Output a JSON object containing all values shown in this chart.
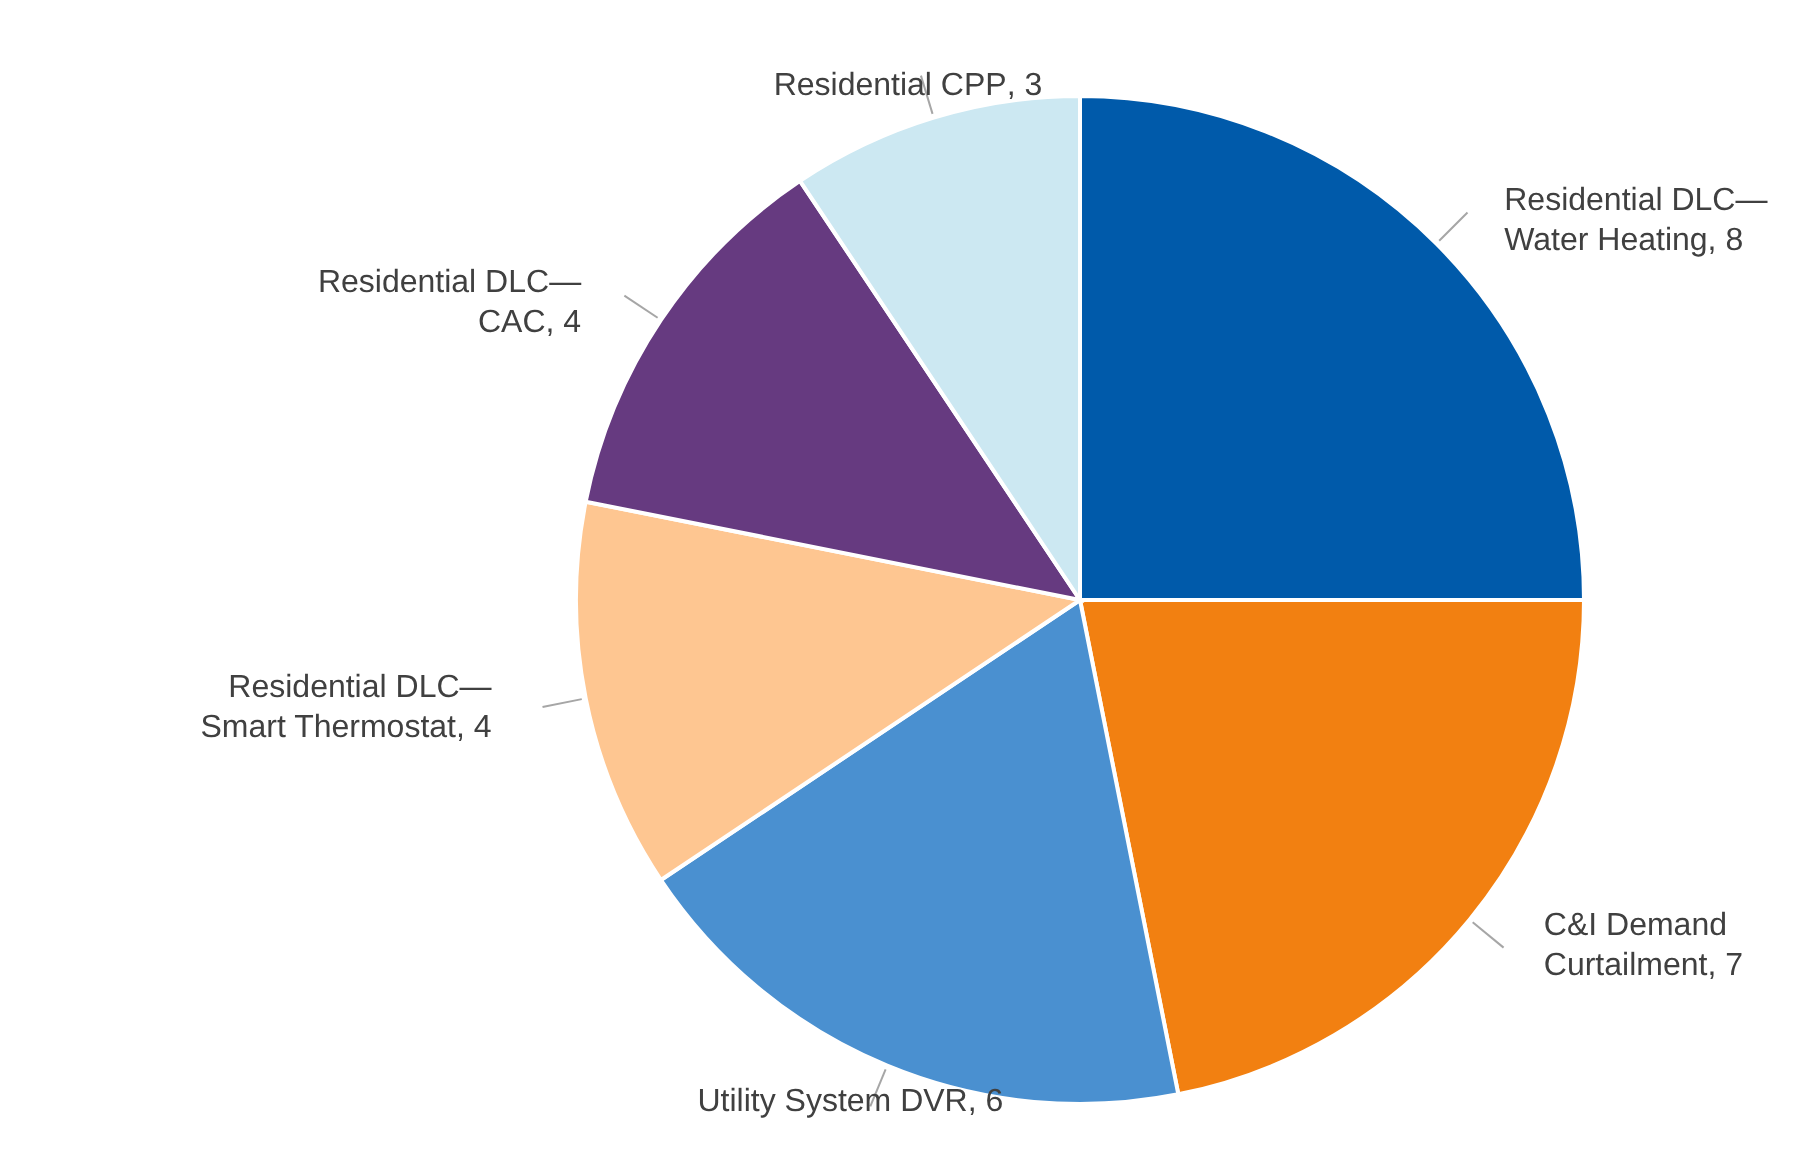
{
  "chart_data": {
    "type": "pie",
    "categories": [
      "Residential DLC—Water Heating",
      "C&I Demand Curtailment",
      "Utility System DVR",
      "Residential DLC—Smart Thermostat",
      "Residential DLC—CAC",
      "Residential CPP"
    ],
    "values": [
      8,
      7,
      6,
      4,
      4,
      3
    ],
    "value_labels": [
      ", 8",
      ", 7",
      ", 6",
      ", 4",
      ", 4",
      ", 3"
    ],
    "colors": [
      "#005aaa",
      "#f28011",
      "#4a90d0",
      "#fec691",
      "#663a80",
      "#cce8f2"
    ],
    "legend": false
  }
}
